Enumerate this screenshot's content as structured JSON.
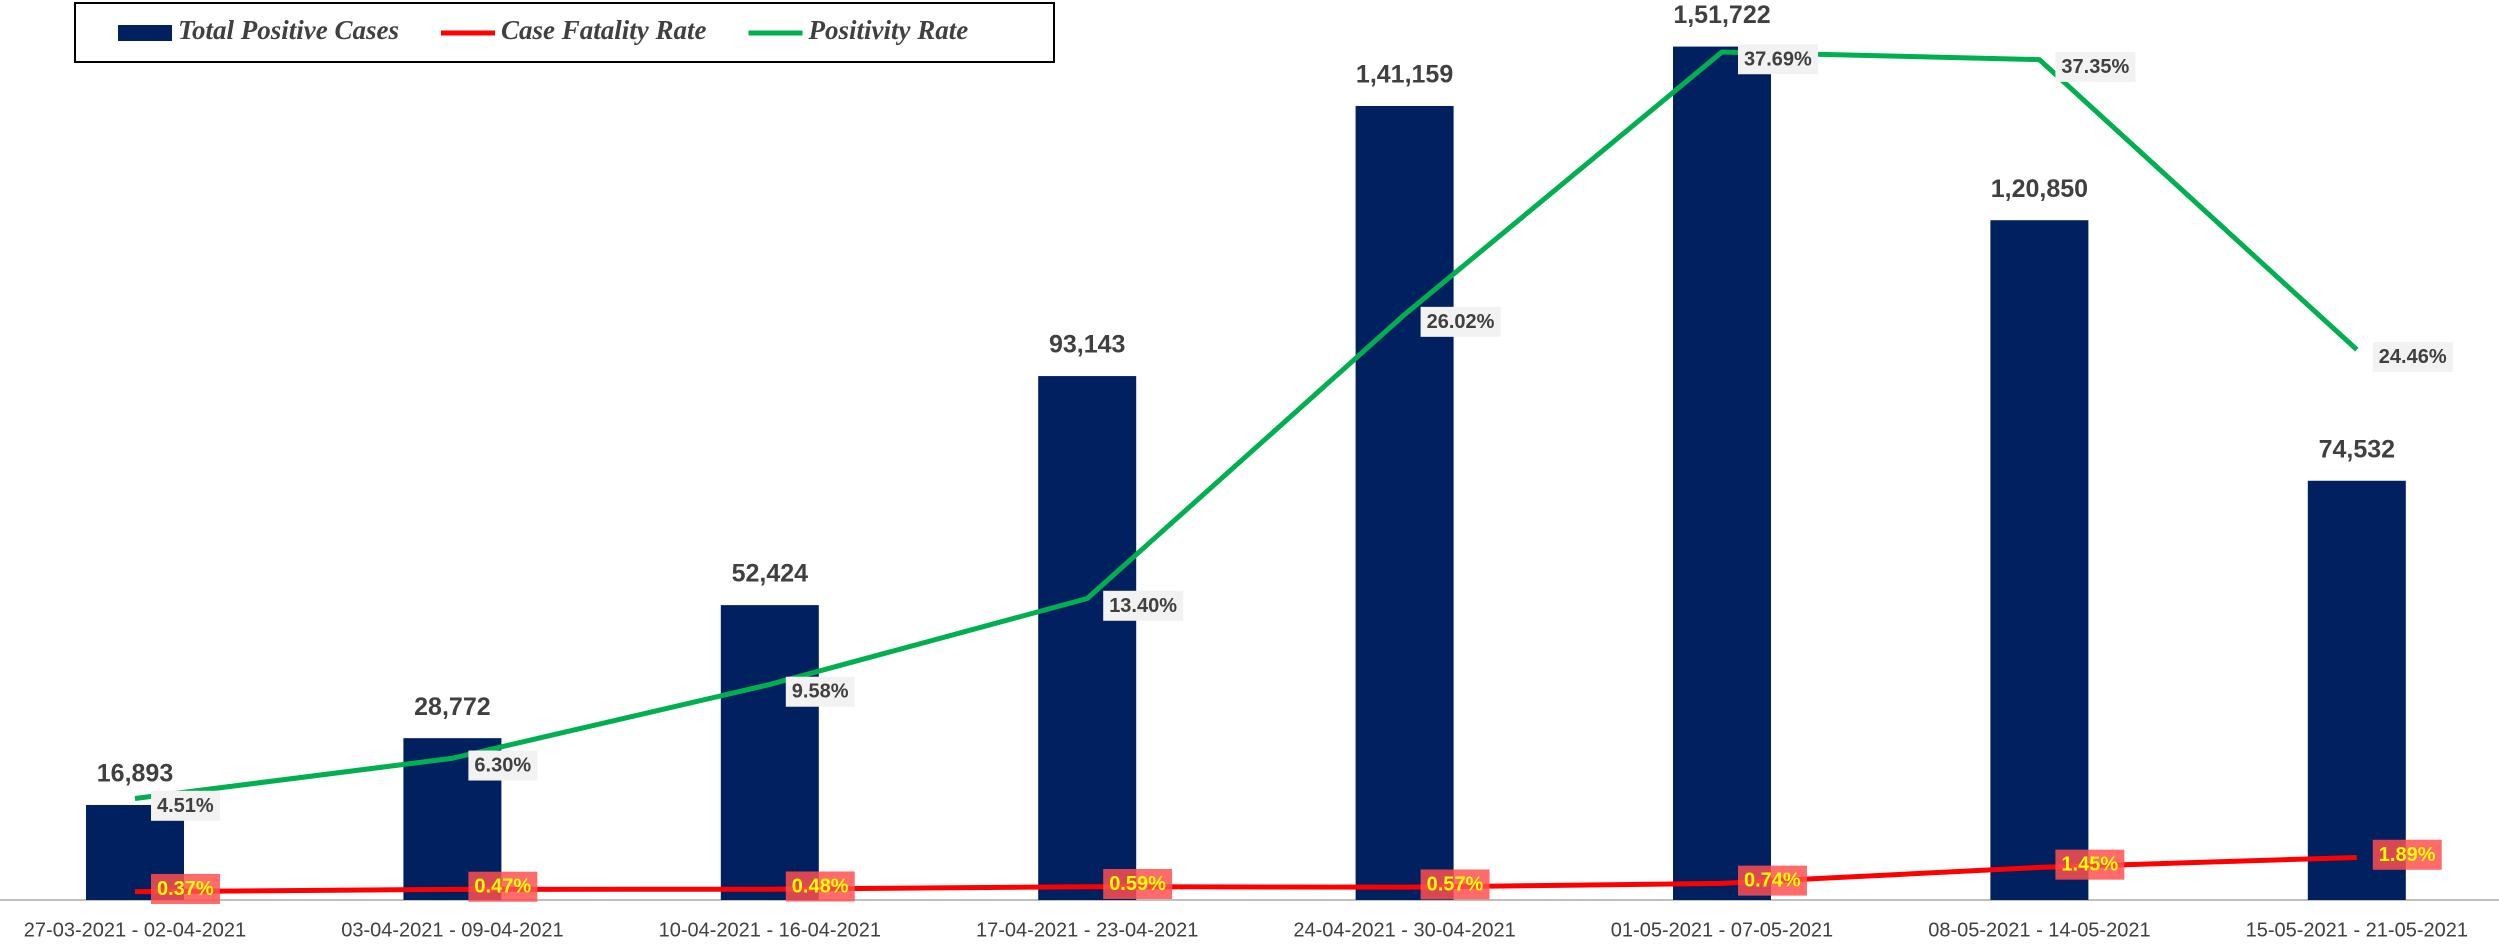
{
  "chart_data": {
    "type": "bar",
    "categories": [
      "27-03-2021 - 02-04-2021",
      "03-04-2021 - 09-04-2021",
      "10-04-2021 - 16-04-2021",
      "17-04-2021 - 23-04-2021",
      "24-04-2021 - 30-04-2021",
      "01-05-2021 - 07-05-2021",
      "08-05-2021 - 14-05-2021",
      "15-05-2021 - 21-05-2021"
    ],
    "series": [
      {
        "name": "Total Positive Cases",
        "type": "bar",
        "color": "#002060",
        "values": [
          16893,
          28772,
          52424,
          93143,
          141159,
          151722,
          120850,
          74532
        ],
        "value_labels": [
          "16,893",
          "28,772",
          "52,424",
          "93,143",
          "1,41,159",
          "1,51,722",
          "1,20,850",
          "74,532"
        ]
      },
      {
        "name": "Case Fatality Rate",
        "type": "line",
        "axis": "y2",
        "color": "#ff0000",
        "values": [
          0.37,
          0.47,
          0.48,
          0.59,
          0.57,
          0.74,
          1.45,
          1.89
        ],
        "value_labels": [
          "0.37%",
          "0.47%",
          "0.48%",
          "0.59%",
          "0.57%",
          "0.74%",
          "1.45%",
          "1.89%"
        ]
      },
      {
        "name": "Positivity Rate",
        "type": "line",
        "axis": "y2",
        "color": "#00b050",
        "values": [
          4.51,
          6.3,
          9.58,
          13.4,
          26.02,
          37.69,
          37.35,
          24.46
        ],
        "value_labels": [
          "4.51%",
          "6.30%",
          "9.58%",
          "13.40%",
          "26.02%",
          "37.69%",
          "37.35%",
          "24.46%"
        ]
      }
    ],
    "ylim": [
      0,
      160000
    ],
    "y2lim": [
      0,
      40
    ],
    "legend": "top-left"
  }
}
